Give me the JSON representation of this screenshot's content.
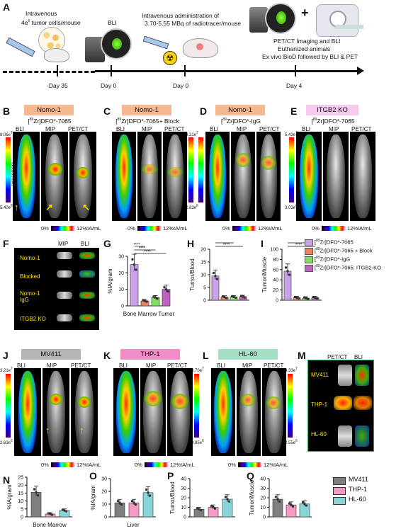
{
  "panels": {
    "A": "A",
    "B": "B",
    "C": "C",
    "D": "D",
    "E": "E",
    "F": "F",
    "G": "G",
    "H": "H",
    "I": "I",
    "J": "J",
    "K": "K",
    "L": "L",
    "M": "M",
    "N": "N",
    "O": "O",
    "P": "P",
    "Q": "Q"
  },
  "timeline": {
    "step1": "Intravenous",
    "step1b": "4e",
    "step1sup": "6",
    "step1c": " tumor cells/mouse",
    "day_m35": "-Day 35",
    "bli": "BLI",
    "day0a": "Day 0",
    "iv_admin1": "Intravenous administration of",
    "iv_admin2": "3.70-5.55 MBq of radiotracer/mouse",
    "day0b": "Day  0",
    "petct1": "PET/CT Imaging and BLI",
    "petct2": "Euthanized animals",
    "petct3": "Ex vivo BioD followed by BLI & PET",
    "day4": "Day 4",
    "plus": "+"
  },
  "row1": {
    "B": {
      "model": "Nomo-1",
      "tracer_pre": "[",
      "tracer_sup": "89",
      "tracer_post": "Zr]DFO*-7065",
      "c1": "BLI",
      "c2": "MIP",
      "c3": "PET/CT",
      "cb_top": "8.06e",
      "cb_top_sup": "7",
      "cb_bot": "5.40e",
      "cb_bot_sup": "6",
      "cb_unit": "p/sec/cm²/sr"
    },
    "C": {
      "model": "Nomo-1",
      "tracer_pre": "[",
      "tracer_sup": "89",
      "tracer_post": "Zr]DFO*-7065+ Block",
      "c1": "BLI",
      "c2": "MIP",
      "c3": "PET/CT",
      "cb_top": "4.21e",
      "cb_top_sup": "7",
      "cb_bot": "2.83e",
      "cb_bot_sup": "6",
      "cb_unit": "p/sec/cm²/sr"
    },
    "D": {
      "model": "Nomo-1",
      "tracer_pre": "[",
      "tracer_sup": "89",
      "tracer_post": "Zr]DFO*-IgG",
      "c1": "BLI",
      "c2": "MIP",
      "c3": "PET/CT",
      "cb_top": "3.94e",
      "cb_top_sup": "7",
      "cb_bot": "2.26e",
      "cb_bot_sup": "6",
      "cb_unit": "p/sec/cm²/sr"
    },
    "E": {
      "model": "ITGB2 KO",
      "tracer_pre": "[",
      "tracer_sup": "89",
      "tracer_post": "Zr]DFO*-7065",
      "c1": "BLI",
      "c2": "MIP",
      "c3": "PET/CT",
      "cb_top": "5.43e",
      "cb_top_sup": "7",
      "cb_bot": "3.03e",
      "cb_bot_sup": "6",
      "cb_unit": "p/sec/cm²/sr"
    },
    "scale": {
      "low": "0%",
      "high": "12%IA/mL"
    }
  },
  "F": {
    "c1": "MIP",
    "c2": "BLI",
    "rows": [
      "Nomo-1",
      "Blocked",
      "Nomo-1\nIgG",
      "ITGB2 KO"
    ]
  },
  "legend1": {
    "items": [
      {
        "pre": "[",
        "sup": "89",
        "post": "Zr]DFO*-7065",
        "color": "#c9a2e8"
      },
      {
        "pre": "[",
        "sup": "89",
        "post": "Zr]DFO*-7065 + Block",
        "color": "#f08060"
      },
      {
        "pre": "[",
        "sup": "89",
        "post": "Zr]DFO*-IgG",
        "color": "#80e060"
      },
      {
        "pre": "[",
        "sup": "89",
        "post": "Zr]DFO*-7065; ITGB2-KO",
        "color": "#c060c0"
      }
    ]
  },
  "row3": {
    "J": {
      "model": "MV411",
      "c1": "BLI",
      "c2": "MIP",
      "c3": "PET/CT",
      "cb_top": "3.21e",
      "cb_top_sup": "7",
      "cb_bot": "2.63e",
      "cb_bot_sup": "6",
      "cb_unit": "p/sec/cm²/sr"
    },
    "K": {
      "model": "THP-1",
      "c1": "BLI",
      "c2": "MIP",
      "c3": "PET/CT",
      "cb_top": "8.70e",
      "cb_top_sup": "7",
      "cb_bot": "9.85e",
      "cb_bot_sup": "6",
      "cb_unit": "p/sec/cm²/sr"
    },
    "L": {
      "model": "HL-60",
      "c1": "BLI",
      "c2": "MIP",
      "c3": "PET/CT",
      "cb_top": "4.33e",
      "cb_top_sup": "7",
      "cb_bot": "2.55e",
      "cb_bot_sup": "6",
      "cb_unit": "p/sec/cm²/sr"
    },
    "scale": {
      "low": "0%",
      "high": "12%IA/mL"
    }
  },
  "M": {
    "c1": "PET/CT",
    "c2": "BLI",
    "rows": [
      "MV411",
      "THP-1",
      "HL-60"
    ]
  },
  "legend2": {
    "items": [
      {
        "name": "MV411",
        "color": "#7f7f7f"
      },
      {
        "name": "THP-1",
        "color": "#f49ac2"
      },
      {
        "name": "HL-60",
        "color": "#88d4d8"
      }
    ]
  },
  "chart_data": [
    {
      "id": "G",
      "type": "bar",
      "ylabel": "%IA/gram",
      "xlabel": "Bone Marrow Tumor",
      "yticks": [
        0,
        10,
        20,
        30
      ],
      "ylim": [
        0,
        30
      ],
      "series": [
        {
          "values": [
            25,
            3,
            5,
            10
          ]
        }
      ],
      "colors": [
        "#c9a2e8",
        "#f08060",
        "#80e060",
        "#c060c0"
      ],
      "sig": [
        "****",
        "****",
        "****"
      ]
    },
    {
      "id": "H",
      "type": "bar",
      "ylabel": "Tumor/Blood",
      "xlabel": "",
      "yticks": [
        0,
        5,
        10,
        15,
        20
      ],
      "ylim": [
        0,
        20
      ],
      "series": [
        {
          "values": [
            9.5,
            1.2,
            1.3,
            1.4
          ]
        }
      ],
      "colors": [
        "#c9a2e8",
        "#f08060",
        "#80e060",
        "#c060c0"
      ],
      "sig": [
        "****",
        "****",
        "****"
      ]
    },
    {
      "id": "I",
      "type": "bar",
      "ylabel": "Tumor/Muscle",
      "xlabel": "",
      "yticks": [
        0,
        20,
        40,
        60,
        80,
        100
      ],
      "ylim": [
        0,
        100
      ],
      "series": [
        {
          "values": [
            57,
            5,
            4,
            5
          ]
        }
      ],
      "colors": [
        "#c9a2e8",
        "#f08060",
        "#80e060",
        "#c060c0"
      ],
      "sig": [
        "****",
        "****",
        "****"
      ]
    },
    {
      "id": "N",
      "type": "bar",
      "ylabel": "%IA/gram",
      "xlabel": "Bone Marrow",
      "yticks": [
        0,
        5,
        10,
        15,
        20,
        25
      ],
      "ylim": [
        0,
        25
      ],
      "series": [
        {
          "values": [
            15.5,
            1.8,
            4
          ]
        }
      ],
      "colors": [
        "#7f7f7f",
        "#f49ac2",
        "#88d4d8"
      ]
    },
    {
      "id": "O",
      "type": "bar",
      "ylabel": "%IA/gram",
      "xlabel": "Liver",
      "yticks": [
        0,
        10,
        20,
        30
      ],
      "ylim": [
        0,
        30
      ],
      "series": [
        {
          "values": [
            11,
            11,
            19
          ]
        }
      ],
      "colors": [
        "#7f7f7f",
        "#f49ac2",
        "#88d4d8"
      ]
    },
    {
      "id": "P",
      "type": "bar",
      "ylabel": "Tumor/Blood",
      "xlabel": "",
      "yticks": [
        0,
        10,
        20,
        30,
        40
      ],
      "ylim": [
        0,
        40
      ],
      "series": [
        {
          "values": [
            8,
            10,
            18.5
          ]
        }
      ],
      "colors": [
        "#7f7f7f",
        "#f49ac2",
        "#88d4d8"
      ]
    },
    {
      "id": "Q",
      "type": "bar",
      "ylabel": "Tumor/Muscle",
      "xlabel": "",
      "yticks": [
        0,
        10,
        20,
        30,
        40
      ],
      "ylim": [
        0,
        40
      ],
      "series": [
        {
          "values": [
            18.5,
            12.5,
            13.5
          ]
        }
      ],
      "colors": [
        "#7f7f7f",
        "#f49ac2",
        "#88d4d8"
      ]
    }
  ]
}
